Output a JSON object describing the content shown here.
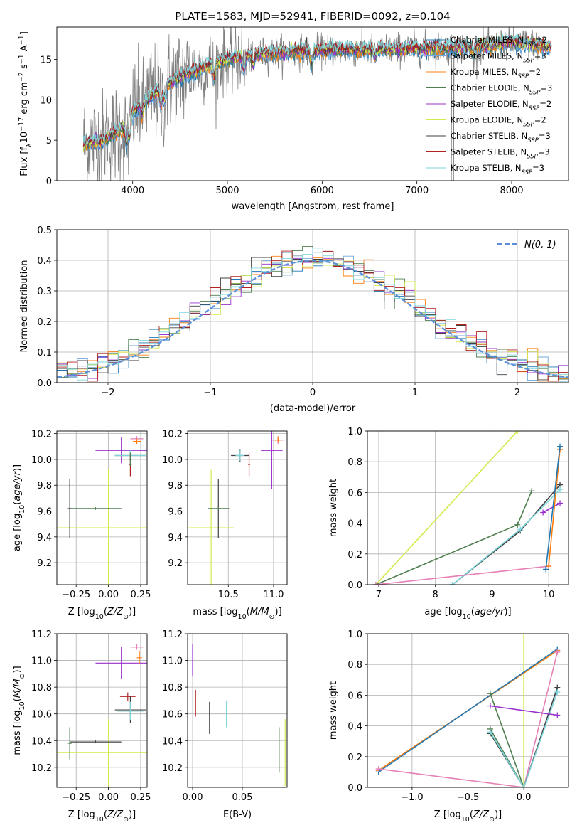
{
  "figure": {
    "title": "PLATE=1583, MJD=52941, FIBERID=0092, z=0.104"
  },
  "colors": {
    "data": "#808080",
    "chabrier_miles": "#1f77b4",
    "salpeter_miles": "#6fa8dc",
    "kroupa_miles": "#ff7f0e",
    "chabrier_elodie": "#4f7f4f",
    "salpeter_elodie": "#9932cc",
    "kroupa_elodie": "#d4e94c",
    "chabrier_stelib": "#404040",
    "salpeter_stelib": "#b22222",
    "kroupa_stelib": "#7ed6dc",
    "gaussian": "#5b8fd9",
    "pink": "#e67fb6"
  },
  "chart_data": [
    {
      "id": "spectrum",
      "type": "line",
      "xlabel": "wavelength [Angstrom, rest frame]",
      "ylabel": "Flux [f_λ 10^-17 erg cm^-2 s^-1 A^-1]",
      "xlim": [
        3200,
        8600
      ],
      "ylim": [
        0,
        19
      ],
      "xticks": [
        4000,
        5000,
        6000,
        7000,
        8000
      ],
      "yticks": [
        0,
        5,
        10,
        15
      ],
      "grid": false,
      "legend_position": "top-right",
      "legend": [
        {
          "label": "Chabrier MILES, N",
          "sub": "SSP",
          "suffix": "=2",
          "color": "chabrier_miles"
        },
        {
          "label": "Salpeter MILES, N",
          "sub": "SSP",
          "suffix": "=3",
          "color": "salpeter_miles"
        },
        {
          "label": "Kroupa MILES, N",
          "sub": "SSP",
          "suffix": "=2",
          "color": "kroupa_miles"
        },
        {
          "label": "Chabrier ELODIE, N",
          "sub": "SSP",
          "suffix": "=3",
          "color": "chabrier_elodie"
        },
        {
          "label": "Salpeter ELODIE, N",
          "sub": "SSP",
          "suffix": "=2",
          "color": "salpeter_elodie"
        },
        {
          "label": "Kroupa ELODIE, N",
          "sub": "SSP",
          "suffix": "=2",
          "color": "kroupa_elodie"
        },
        {
          "label": "Chabrier STELIB, N",
          "sub": "SSP",
          "suffix": "=3",
          "color": "chabrier_stelib"
        },
        {
          "label": "Salpeter STELIB, N",
          "sub": "SSP",
          "suffix": "=3",
          "color": "salpeter_stelib"
        },
        {
          "label": "Kroupa STELIB, N",
          "sub": "SSP",
          "suffix": "=3",
          "color": "kroupa_stelib"
        }
      ],
      "continuum": {
        "x": [
          3500,
          3700,
          3900,
          4000,
          4200,
          4400,
          4600,
          4800,
          5000,
          5200,
          5500,
          5800,
          6000,
          6300,
          6600,
          6900,
          7200,
          7500,
          7800,
          8000,
          8200,
          8400
        ],
        "y": [
          4.5,
          5.0,
          6.5,
          8.5,
          10.5,
          12.2,
          13.3,
          14.3,
          15.0,
          15.5,
          15.8,
          16.0,
          16.1,
          16.2,
          16.2,
          16.3,
          16.4,
          16.5,
          16.7,
          17.2,
          16.8,
          16.5
        ]
      }
    },
    {
      "id": "residuals",
      "type": "line",
      "xlabel": "(data-model)/error",
      "ylabel": "Normed distribution",
      "xlim": [
        -2.5,
        2.5
      ],
      "ylim": [
        0,
        0.5
      ],
      "xticks": [
        -2,
        -1,
        0,
        1,
        2
      ],
      "xtick_labels": [
        "−2",
        "−1",
        "0",
        "1",
        "2"
      ],
      "yticks": [
        0,
        0.1,
        0.2,
        0.3,
        0.4,
        0.5
      ],
      "ytick_labels": [
        "0.0",
        "0.1",
        "0.2",
        "0.3",
        "0.4",
        "0.5"
      ],
      "grid": true,
      "legend_position": "top-right",
      "series": [
        {
          "name": "N(0, 1)",
          "mu": 0,
          "sigma": 1,
          "color": "gaussian"
        }
      ]
    },
    {
      "id": "age_vs_Z",
      "type": "scatter",
      "xlabel": "Z [log10(Z/Z⊙)]",
      "ylabel": "age  [log10(age/yr)]",
      "xlim": [
        -0.4,
        0.3
      ],
      "ylim": [
        9.03,
        10.22
      ],
      "xticks": [
        -0.25,
        0.0,
        0.25
      ],
      "xtick_labels": [
        "−0.25",
        "0.00",
        "0.25"
      ],
      "yticks": [
        9.2,
        9.4,
        9.6,
        9.8,
        10.0,
        10.2
      ],
      "ytick_labels": [
        "9.2",
        "9.4",
        "9.6",
        "9.8",
        "10.0",
        "10.2"
      ],
      "grid": true,
      "points": [
        {
          "x": 0.0,
          "y": 9.47,
          "xerr": 0.43,
          "yerr": 0.45,
          "color": "kroupa_elodie"
        },
        {
          "x": -0.3,
          "y": 9.62,
          "xerr": 0.02,
          "yerr": 0.23,
          "color": "chabrier_stelib"
        },
        {
          "x": -0.1,
          "y": 9.62,
          "xerr": 0.2,
          "yerr": 0.01,
          "color": "chabrier_elodie"
        },
        {
          "x": 0.1,
          "y": 10.07,
          "xerr": 0.2,
          "yerr": 0.1,
          "color": "salpeter_elodie"
        },
        {
          "x": 0.17,
          "y": 10.03,
          "xerr": 0.12,
          "yerr": 0.04,
          "color": "chabrier_stelib"
        },
        {
          "x": 0.17,
          "y": 10.03,
          "xerr": 0.12,
          "yerr": 0.04,
          "color": "kroupa_stelib"
        },
        {
          "x": 0.17,
          "y": 9.96,
          "xerr": 0.01,
          "yerr": 0.09,
          "color": "salpeter_stelib"
        },
        {
          "x": 0.17,
          "y": 10.0,
          "xerr": 0.01,
          "yerr": 0.05,
          "color": "chabrier_elodie"
        },
        {
          "x": 0.22,
          "y": 10.16,
          "xerr": 0.05,
          "yerr": 0.02,
          "color": "pink"
        },
        {
          "x": 0.22,
          "y": 10.14,
          "xerr": 0.03,
          "yerr": 0.02,
          "color": "kroupa_miles"
        }
      ]
    },
    {
      "id": "age_vs_mass",
      "type": "scatter",
      "xlabel": "mass [log10(M/M⊙)]",
      "ylabel": "",
      "xlim": [
        10.05,
        11.15
      ],
      "ylim": [
        9.03,
        10.22
      ],
      "xticks": [
        10.5,
        11.0
      ],
      "xtick_labels": [
        "10.5",
        "11.0"
      ],
      "yticks": [
        9.2,
        9.4,
        9.6,
        9.8,
        10.0,
        10.2
      ],
      "ytick_labels": [
        "9.2",
        "9.4",
        "9.6",
        "9.8",
        "10.0",
        "10.2"
      ],
      "grid": true,
      "points": [
        {
          "x": 10.31,
          "y": 9.47,
          "xerr": 0.25,
          "yerr": 0.45,
          "color": "kroupa_elodie"
        },
        {
          "x": 10.39,
          "y": 9.62,
          "xerr": 0.02,
          "yerr": 0.23,
          "color": "chabrier_stelib"
        },
        {
          "x": 10.39,
          "y": 9.62,
          "xerr": 0.12,
          "yerr": 0.01,
          "color": "chabrier_elodie"
        },
        {
          "x": 10.63,
          "y": 10.03,
          "xerr": 0.1,
          "yerr": 0.05,
          "color": "chabrier_stelib"
        },
        {
          "x": 10.63,
          "y": 10.03,
          "xerr": 0.05,
          "yerr": 0.04,
          "color": "kroupa_stelib"
        },
        {
          "x": 10.73,
          "y": 9.96,
          "xerr": 0.01,
          "yerr": 0.09,
          "color": "salpeter_stelib"
        },
        {
          "x": 10.98,
          "y": 10.07,
          "xerr": 0.12,
          "yerr": 0.3,
          "color": "salpeter_elodie"
        },
        {
          "x": 11.05,
          "y": 10.15,
          "xerr": 0.07,
          "yerr": 0.03,
          "color": "pink"
        },
        {
          "x": 11.05,
          "y": 10.15,
          "xerr": 0.04,
          "yerr": 0.02,
          "color": "kroupa_miles"
        }
      ]
    },
    {
      "id": "massweight_vs_age",
      "type": "line",
      "xlabel": "age  [log10(age/yr)]",
      "ylabel": "mass weight",
      "xlim": [
        6.8,
        10.35
      ],
      "ylim": [
        0,
        1
      ],
      "xticks": [
        7,
        8,
        9,
        10
      ],
      "yticks": [
        0,
        0.2,
        0.4,
        0.6,
        0.8,
        1.0
      ],
      "ytick_labels": [
        "0.0",
        "0.2",
        "0.4",
        "0.6",
        "0.8",
        "1.0"
      ],
      "grid": true,
      "series": [
        {
          "color": "kroupa_elodie",
          "x": [
            6.95,
            9.45
          ],
          "y": [
            0.0,
            1.0
          ]
        },
        {
          "color": "chabrier_elodie",
          "x": [
            6.95,
            9.45,
            9.7
          ],
          "y": [
            0.0,
            0.39,
            0.61
          ]
        },
        {
          "color": "chabrier_stelib",
          "x": [
            8.3,
            9.5,
            10.2
          ],
          "y": [
            0.0,
            0.35,
            0.65
          ]
        },
        {
          "color": "kroupa_stelib",
          "x": [
            8.3,
            9.5,
            10.2
          ],
          "y": [
            0.0,
            0.36,
            0.62
          ]
        },
        {
          "color": "pink",
          "x": [
            6.95,
            10.0
          ],
          "y": [
            0.0,
            0.12
          ]
        },
        {
          "color": "salpeter_elodie",
          "x": [
            9.9,
            10.2
          ],
          "y": [
            0.47,
            0.53
          ]
        },
        {
          "color": "kroupa_miles",
          "x": [
            10.0,
            10.2
          ],
          "y": [
            0.12,
            0.88
          ]
        },
        {
          "color": "chabrier_miles",
          "x": [
            9.95,
            10.2
          ],
          "y": [
            0.1,
            0.9
          ]
        }
      ]
    },
    {
      "id": "mass_vs_Z",
      "type": "scatter",
      "xlabel": "Z [log10(Z/Z⊙)]",
      "ylabel": "mass [log10(M/M⊙)]",
      "xlim": [
        -0.4,
        0.3
      ],
      "ylim": [
        10.05,
        11.2
      ],
      "xticks": [
        -0.25,
        0.0,
        0.25
      ],
      "xtick_labels": [
        "−0.25",
        "0.00",
        "0.25"
      ],
      "yticks": [
        10.2,
        10.4,
        10.6,
        10.8,
        11.0,
        11.2
      ],
      "ytick_labels": [
        "10.2",
        "10.4",
        "10.6",
        "10.8",
        "11.0",
        "11.2"
      ],
      "grid": true,
      "points": [
        {
          "x": 0.0,
          "y": 10.31,
          "xerr": 0.43,
          "yerr": 0.25,
          "color": "kroupa_elodie"
        },
        {
          "x": -0.3,
          "y": 10.38,
          "xerr": 0.02,
          "yerr": 0.12,
          "color": "chabrier_elodie"
        },
        {
          "x": -0.1,
          "y": 10.39,
          "xerr": 0.2,
          "yerr": 0.01,
          "color": "chabrier_stelib"
        },
        {
          "x": 0.1,
          "y": 10.98,
          "xerr": 0.2,
          "yerr": 0.12,
          "color": "salpeter_elodie"
        },
        {
          "x": 0.15,
          "y": 10.73,
          "xerr": 0.06,
          "yerr": 0.03,
          "color": "salpeter_stelib"
        },
        {
          "x": 0.17,
          "y": 10.63,
          "xerr": 0.12,
          "yerr": 0.1,
          "color": "chabrier_stelib"
        },
        {
          "x": 0.17,
          "y": 10.62,
          "xerr": 0.1,
          "yerr": 0.07,
          "color": "kroupa_stelib"
        },
        {
          "x": 0.22,
          "y": 11.1,
          "xerr": 0.05,
          "yerr": 0.02,
          "color": "pink"
        },
        {
          "x": 0.24,
          "y": 11.02,
          "xerr": 0.02,
          "yerr": 0.05,
          "color": "kroupa_miles"
        }
      ]
    },
    {
      "id": "mass_vs_ebv",
      "type": "scatter",
      "xlabel": "E(B-V)",
      "ylabel": "",
      "xlim": [
        -0.005,
        0.095
      ],
      "ylim": [
        10.05,
        11.2
      ],
      "xticks": [
        0.0,
        0.05
      ],
      "xtick_labels": [
        "0.00",
        "0.05"
      ],
      "yticks": [
        10.2,
        10.4,
        10.6,
        10.8,
        11.0,
        11.2
      ],
      "ytick_labels": [
        "10.2",
        "10.4",
        "10.6",
        "10.8",
        "11.0",
        "11.2"
      ],
      "grid": true,
      "points": [
        {
          "x": 0.0,
          "y": 11.0,
          "xerr": 0,
          "yerr": 0.12,
          "color": "salpeter_elodie"
        },
        {
          "x": 0.003,
          "y": 10.68,
          "xerr": 0,
          "yerr": 0.1,
          "color": "salpeter_stelib"
        },
        {
          "x": 0.017,
          "y": 10.57,
          "xerr": 0,
          "yerr": 0.12,
          "color": "chabrier_stelib"
        },
        {
          "x": 0.034,
          "y": 10.6,
          "xerr": 0,
          "yerr": 0.1,
          "color": "kroupa_stelib"
        },
        {
          "x": 0.087,
          "y": 10.33,
          "xerr": 0,
          "yerr": 0.17,
          "color": "chabrier_elodie"
        },
        {
          "x": 0.093,
          "y": 10.31,
          "xerr": 0,
          "yerr": 0.25,
          "color": "kroupa_elodie"
        }
      ]
    },
    {
      "id": "massweight_vs_Z",
      "type": "line",
      "xlabel": "Z [log10(Z/Z⊙)]",
      "ylabel": "mass weight",
      "xlim": [
        -1.4,
        0.4
      ],
      "ylim": [
        0,
        1
      ],
      "xticks": [
        -1.0,
        -0.5,
        0.0
      ],
      "xtick_labels": [
        "−1.0",
        "−0.5",
        "0.0"
      ],
      "yticks": [
        0,
        0.2,
        0.4,
        0.6,
        0.8,
        1.0
      ],
      "ytick_labels": [
        "0.0",
        "0.2",
        "0.4",
        "0.6",
        "0.8",
        "1.0"
      ],
      "grid": true,
      "series": [
        {
          "color": "kroupa_elodie",
          "x": [
            0.0,
            0.0
          ],
          "y": [
            0.0,
            1.0
          ]
        },
        {
          "color": "kroupa_miles",
          "x": [
            -1.3,
            0.3
          ],
          "y": [
            0.11,
            0.89
          ]
        },
        {
          "color": "chabrier_miles",
          "x": [
            -1.3,
            0.3
          ],
          "y": [
            0.1,
            0.9
          ]
        },
        {
          "color": "pink",
          "x": [
            -1.3,
            0.0,
            0.3
          ],
          "y": [
            0.12,
            0.0,
            0.88
          ]
        },
        {
          "color": "chabrier_elodie",
          "x": [
            -0.3,
            0.0,
            -0.3
          ],
          "y": [
            0.61,
            0.0,
            0.38
          ]
        },
        {
          "color": "chabrier_stelib",
          "x": [
            -0.3,
            0.0,
            0.3
          ],
          "y": [
            0.35,
            0.0,
            0.65
          ]
        },
        {
          "color": "kroupa_stelib",
          "x": [
            -0.3,
            0.0,
            0.3
          ],
          "y": [
            0.36,
            0.0,
            0.62
          ]
        },
        {
          "color": "salpeter_elodie",
          "x": [
            -0.3,
            0.3
          ],
          "y": [
            0.53,
            0.47
          ]
        }
      ]
    }
  ]
}
